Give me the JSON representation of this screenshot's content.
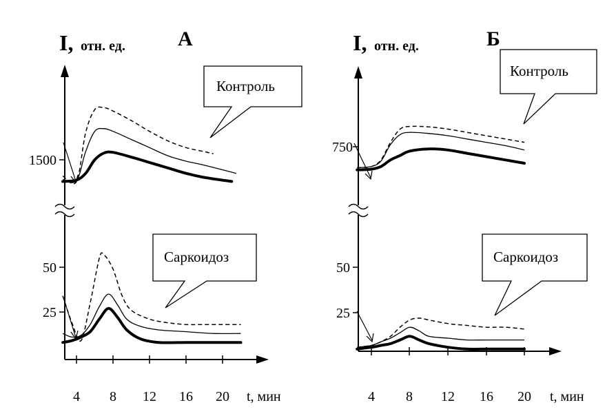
{
  "colors": {
    "background": "#ffffff",
    "ink": "#000000"
  },
  "chart_data": [
    {
      "type": "line",
      "panel_label": "А",
      "ylabel_main": "I,",
      "ylabel_units": "отн. ед.",
      "xlabel": "t, мин",
      "x_ticks": [
        "4",
        "8",
        "12",
        "16",
        "20"
      ],
      "upper": {
        "callout": "Контроль",
        "y_ticks": [
          "1500"
        ],
        "series": [
          {
            "style": "dashed",
            "x": [
              2.5,
              4,
              5,
              6,
              7,
              8,
              10,
              12,
              14,
              16,
              18,
              19
            ],
            "y": [
              1380,
              1340,
              1700,
              1870,
              1885,
              1860,
              1790,
              1710,
              1640,
              1590,
              1560,
              1545
            ]
          },
          {
            "style": "thin",
            "x": [
              2.5,
              4,
              5,
              6,
              7,
              8,
              10,
              12,
              14,
              16,
              18,
              21.5
            ],
            "y": [
              1355,
              1345,
              1560,
              1710,
              1730,
              1710,
              1650,
              1590,
              1530,
              1490,
              1460,
              1400
            ]
          },
          {
            "style": "thick",
            "x": [
              2.5,
              4,
              5,
              6,
              7,
              8,
              10,
              12,
              14,
              16,
              18,
              21
            ],
            "y": [
              1340,
              1350,
              1400,
              1500,
              1550,
              1555,
              1520,
              1480,
              1440,
              1400,
              1370,
              1340
            ]
          }
        ]
      },
      "lower": {
        "callout": "Саркоидоз",
        "y_ticks": [
          "50",
          "25"
        ],
        "series": [
          {
            "style": "dashed",
            "x": [
              2.5,
              3.5,
              4.5,
              5.5,
              6.5,
              7,
              8,
              9,
              10,
              12,
              14,
              16,
              18,
              20,
              22
            ],
            "y": [
              34,
              19,
              9,
              30,
              55,
              57,
              49,
              34,
              26,
              21,
              19,
              18,
              18,
              18,
              18
            ]
          },
          {
            "style": "thin",
            "x": [
              2.5,
              3.5,
              4.5,
              5.5,
              6.5,
              7.5,
              8.5,
              9.5,
              11,
              13,
              16,
              19,
              22
            ],
            "y": [
              13,
              11,
              12,
              18,
              28,
              35,
              29,
              21,
              17,
              15,
              14,
              13,
              13
            ]
          },
          {
            "style": "thick",
            "x": [
              2.5,
              3.5,
              4.5,
              5.5,
              6.5,
              7.5,
              8.5,
              9.5,
              11,
              13,
              16,
              19,
              22
            ],
            "y": [
              8,
              9,
              11,
              14,
              21,
              27,
              22,
              15,
              10,
              8,
              8,
              8,
              8
            ]
          }
        ]
      }
    },
    {
      "type": "line",
      "panel_label": "Б",
      "ylabel_main": "I,",
      "ylabel_units": "отн. ед.",
      "xlabel": "t, мин",
      "x_ticks": [
        "4",
        "8",
        "12",
        "16",
        "20"
      ],
      "upper": {
        "callout": "Контроль",
        "y_ticks": [
          "750"
        ],
        "series": [
          {
            "style": "dashed",
            "x": [
              2.5,
              4,
              5,
              6,
              7,
              8,
              10,
              12,
              14,
              16,
              18,
              20
            ],
            "y": [
              655,
              660,
              690,
              770,
              830,
              842,
              840,
              830,
              815,
              800,
              785,
              770
            ]
          },
          {
            "style": "thin",
            "x": [
              2.5,
              4,
              5,
              6,
              7,
              8,
              10,
              12,
              14,
              16,
              18,
              20
            ],
            "y": [
              655,
              660,
              685,
              760,
              805,
              815,
              810,
              800,
              785,
              770,
              755,
              735
            ]
          },
          {
            "style": "thick",
            "x": [
              2.5,
              4,
              5,
              6,
              7,
              8,
              10,
              12,
              14,
              16,
              18,
              20
            ],
            "y": [
              645,
              648,
              660,
              690,
              710,
              730,
              740,
              735,
              720,
              705,
              690,
              675
            ]
          }
        ]
      },
      "lower": {
        "callout": "Саркоидоз",
        "y_ticks": [
          "50",
          "25"
        ],
        "series": [
          {
            "style": "dashed",
            "x": [
              2.5,
              4,
              5,
              6,
              7,
              8,
              9,
              10,
              12,
              14,
              16,
              18,
              20
            ],
            "y": [
              6,
              7,
              9,
              12,
              17,
              21,
              22,
              21,
              19,
              18,
              17,
              17,
              16
            ]
          },
          {
            "style": "thin",
            "x": [
              2.5,
              4,
              5,
              6,
              7,
              8,
              9,
              10,
              12,
              14,
              16,
              18,
              20
            ],
            "y": [
              6,
              7,
              9,
              11,
              14,
              17,
              15,
              12,
              11,
              10,
              10,
              10,
              10
            ]
          },
          {
            "style": "thick",
            "x": [
              2.5,
              4,
              5,
              6,
              7,
              8,
              9,
              10,
              12,
              14,
              16,
              18,
              20
            ],
            "y": [
              5,
              6,
              7,
              8,
              10,
              12,
              10,
              8,
              6,
              5,
              5,
              5,
              5
            ]
          }
        ]
      }
    }
  ]
}
